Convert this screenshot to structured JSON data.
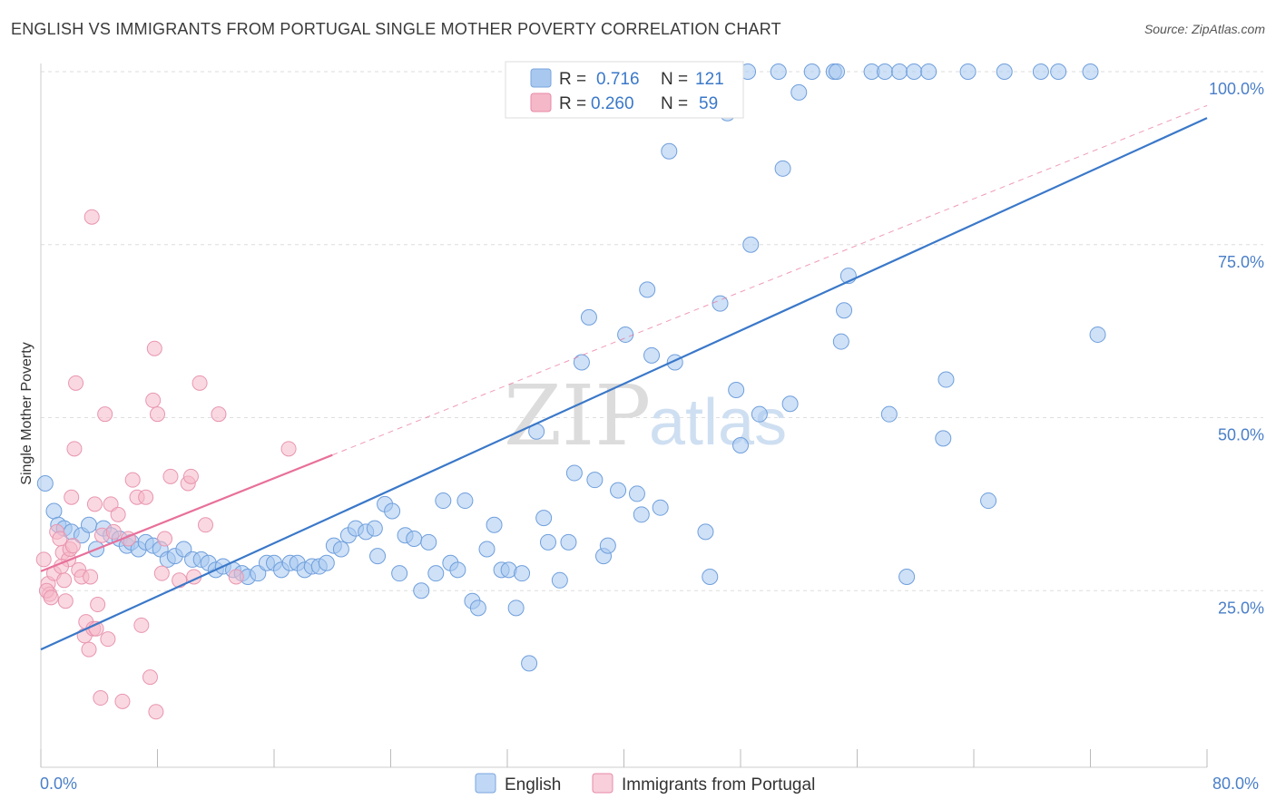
{
  "title": "ENGLISH VS IMMIGRANTS FROM PORTUGAL SINGLE MOTHER POVERTY CORRELATION CHART",
  "source": "Source: ZipAtlas.com",
  "watermark": {
    "zip": "ZIP",
    "atlas": "atlas"
  },
  "legend": {
    "r_label": "R =",
    "n_label": "N =",
    "rows": [
      {
        "r": "0.716",
        "n": "121",
        "color": "#a8c8f0"
      },
      {
        "r": "0.260",
        "n": "59",
        "color": "#f5b8c8"
      }
    ]
  },
  "bottom_legend": [
    "English",
    "Immigrants from Portugal"
  ],
  "chart_data": {
    "type": "scatter",
    "title": "ENGLISH VS IMMIGRANTS FROM PORTUGAL SINGLE MOTHER POVERTY CORRELATION CHART",
    "xlabel": "",
    "ylabel": "Single Mother Poverty",
    "xlim": [
      0,
      80
    ],
    "ylim": [
      0,
      100
    ],
    "x_tick_labels": [
      "0.0%",
      "80.0%"
    ],
    "y_tick_labels": [
      "100.0%",
      "75.0%",
      "50.0%",
      "25.0%"
    ],
    "y_ticks": [
      100,
      75,
      50,
      25
    ],
    "grid": true,
    "legend_position": "top-center",
    "colors": {
      "english": "#3a78c9",
      "english_fill": "#a8c8f0",
      "portugal": "#e8709a",
      "portugal_fill": "#f5b8c8"
    },
    "trendlines": [
      {
        "series": "English",
        "x": [
          0,
          80
        ],
        "y": [
          16.5,
          93.3
        ],
        "style": "solid"
      },
      {
        "series": "Immigrants from Portugal",
        "x": [
          0,
          20
        ],
        "y": [
          27.8,
          44.6
        ],
        "style": "solid"
      },
      {
        "series": "Immigrants from Portugal",
        "x": [
          20,
          80
        ],
        "y": [
          44.6,
          95.1
        ],
        "style": "dashed"
      }
    ],
    "series": [
      {
        "name": "English",
        "points": [
          [
            0.3,
            40.5
          ],
          [
            0.9,
            36.5
          ],
          [
            1.2,
            34.5
          ],
          [
            1.6,
            34.0
          ],
          [
            2.1,
            33.5
          ],
          [
            2.8,
            33.0
          ],
          [
            3.3,
            34.5
          ],
          [
            3.8,
            31.0
          ],
          [
            4.3,
            34.0
          ],
          [
            4.8,
            33.0
          ],
          [
            5.4,
            32.5
          ],
          [
            5.9,
            31.5
          ],
          [
            6.2,
            32.0
          ],
          [
            6.7,
            31.0
          ],
          [
            7.2,
            32.0
          ],
          [
            7.7,
            31.5
          ],
          [
            8.2,
            31.0
          ],
          [
            8.7,
            29.5
          ],
          [
            9.2,
            30.0
          ],
          [
            9.8,
            31.0
          ],
          [
            10.4,
            29.5
          ],
          [
            11.0,
            29.5
          ],
          [
            11.5,
            29.0
          ],
          [
            12.0,
            28.0
          ],
          [
            12.5,
            28.5
          ],
          [
            13.2,
            28.0
          ],
          [
            13.8,
            27.5
          ],
          [
            14.2,
            27.0
          ],
          [
            14.9,
            27.5
          ],
          [
            15.5,
            29.0
          ],
          [
            16.0,
            29.0
          ],
          [
            16.5,
            28.0
          ],
          [
            17.1,
            29.0
          ],
          [
            17.6,
            29.0
          ],
          [
            18.1,
            28.0
          ],
          [
            18.6,
            28.5
          ],
          [
            19.1,
            28.5
          ],
          [
            19.6,
            29.0
          ],
          [
            20.1,
            31.5
          ],
          [
            20.6,
            31.0
          ],
          [
            21.1,
            33.0
          ],
          [
            21.6,
            34.0
          ],
          [
            22.3,
            33.5
          ],
          [
            22.9,
            34.0
          ],
          [
            23.1,
            30.0
          ],
          [
            23.6,
            37.5
          ],
          [
            24.1,
            36.5
          ],
          [
            24.6,
            27.5
          ],
          [
            25.0,
            33.0
          ],
          [
            25.6,
            32.5
          ],
          [
            26.1,
            25.0
          ],
          [
            26.6,
            32.0
          ],
          [
            27.1,
            27.5
          ],
          [
            27.6,
            38.0
          ],
          [
            28.1,
            29.0
          ],
          [
            28.6,
            28.0
          ],
          [
            29.1,
            38.0
          ],
          [
            29.6,
            23.5
          ],
          [
            30.0,
            22.5
          ],
          [
            30.6,
            31.0
          ],
          [
            31.1,
            34.5
          ],
          [
            31.6,
            28.0
          ],
          [
            32.1,
            28.0
          ],
          [
            32.6,
            22.5
          ],
          [
            33.0,
            27.5
          ],
          [
            33.5,
            14.5
          ],
          [
            34.0,
            48.0
          ],
          [
            34.5,
            35.5
          ],
          [
            34.8,
            32.0
          ],
          [
            35.6,
            26.5
          ],
          [
            36.2,
            32.0
          ],
          [
            36.6,
            42.0
          ],
          [
            37.1,
            58.0
          ],
          [
            37.6,
            64.5
          ],
          [
            38.0,
            41.0
          ],
          [
            38.6,
            30.0
          ],
          [
            38.9,
            31.5
          ],
          [
            39.6,
            39.5
          ],
          [
            40.1,
            62.0
          ],
          [
            40.9,
            39.0
          ],
          [
            41.2,
            36.0
          ],
          [
            41.6,
            68.5
          ],
          [
            41.9,
            59.0
          ],
          [
            42.5,
            37.0
          ],
          [
            43.1,
            88.5
          ],
          [
            43.5,
            58.0
          ],
          [
            44.1,
            100.0
          ],
          [
            45.0,
            100.0
          ],
          [
            45.6,
            33.5
          ],
          [
            45.9,
            27.0
          ],
          [
            46.6,
            66.5
          ],
          [
            47.1,
            94.0
          ],
          [
            47.7,
            54.0
          ],
          [
            48.0,
            46.0
          ],
          [
            48.5,
            100.0
          ],
          [
            48.7,
            75.0
          ],
          [
            49.3,
            50.5
          ],
          [
            50.6,
            100.0
          ],
          [
            50.9,
            86.0
          ],
          [
            51.4,
            52.0
          ],
          [
            52.0,
            97.0
          ],
          [
            52.9,
            100.0
          ],
          [
            54.4,
            100.0
          ],
          [
            54.6,
            100.0
          ],
          [
            54.9,
            61.0
          ],
          [
            55.1,
            65.5
          ],
          [
            55.4,
            70.5
          ],
          [
            57.0,
            100.0
          ],
          [
            57.9,
            100.0
          ],
          [
            58.9,
            100.0
          ],
          [
            59.9,
            100.0
          ],
          [
            60.9,
            100.0
          ],
          [
            59.4,
            27.0
          ],
          [
            58.2,
            50.5
          ],
          [
            61.9,
            47.0
          ],
          [
            62.1,
            55.5
          ],
          [
            63.6,
            100.0
          ],
          [
            66.1,
            100.0
          ],
          [
            68.6,
            100.0
          ],
          [
            69.8,
            100.0
          ],
          [
            72.0,
            100.0
          ],
          [
            72.5,
            62.0
          ],
          [
            65.0,
            38.0
          ]
        ]
      },
      {
        "name": "Immigrants from Portugal",
        "points": [
          [
            0.2,
            29.5
          ],
          [
            0.5,
            26.0
          ],
          [
            0.6,
            24.5
          ],
          [
            0.9,
            27.5
          ],
          [
            1.1,
            33.5
          ],
          [
            1.3,
            32.5
          ],
          [
            1.5,
            30.5
          ],
          [
            1.6,
            26.5
          ],
          [
            1.7,
            23.5
          ],
          [
            1.9,
            29.5
          ],
          [
            2.0,
            31.0
          ],
          [
            2.1,
            38.5
          ],
          [
            2.3,
            45.5
          ],
          [
            2.4,
            55.0
          ],
          [
            2.6,
            28.0
          ],
          [
            2.8,
            27.0
          ],
          [
            3.0,
            18.5
          ],
          [
            3.1,
            20.5
          ],
          [
            3.3,
            16.5
          ],
          [
            3.4,
            27.0
          ],
          [
            3.5,
            79.0
          ],
          [
            3.6,
            19.5
          ],
          [
            3.7,
            37.5
          ],
          [
            3.8,
            19.5
          ],
          [
            3.9,
            23.0
          ],
          [
            4.1,
            9.5
          ],
          [
            4.2,
            33.0
          ],
          [
            4.4,
            50.5
          ],
          [
            4.6,
            18.0
          ],
          [
            4.8,
            37.5
          ],
          [
            5.0,
            33.5
          ],
          [
            5.3,
            36.0
          ],
          [
            5.6,
            9.0
          ],
          [
            6.0,
            32.5
          ],
          [
            6.3,
            41.0
          ],
          [
            6.6,
            38.5
          ],
          [
            6.9,
            20.0
          ],
          [
            7.2,
            38.5
          ],
          [
            7.5,
            12.5
          ],
          [
            7.7,
            52.5
          ],
          [
            7.8,
            60.0
          ],
          [
            7.9,
            7.5
          ],
          [
            8.0,
            50.5
          ],
          [
            8.3,
            27.5
          ],
          [
            8.5,
            32.5
          ],
          [
            8.9,
            41.5
          ],
          [
            9.5,
            26.5
          ],
          [
            10.1,
            40.5
          ],
          [
            10.3,
            41.5
          ],
          [
            10.5,
            27.0
          ],
          [
            10.9,
            55.0
          ],
          [
            11.3,
            34.5
          ],
          [
            12.2,
            50.5
          ],
          [
            13.4,
            27.0
          ],
          [
            17.0,
            45.5
          ],
          [
            0.4,
            25.0
          ],
          [
            0.7,
            24.0
          ],
          [
            1.4,
            28.5
          ],
          [
            2.2,
            31.5
          ]
        ]
      }
    ]
  }
}
